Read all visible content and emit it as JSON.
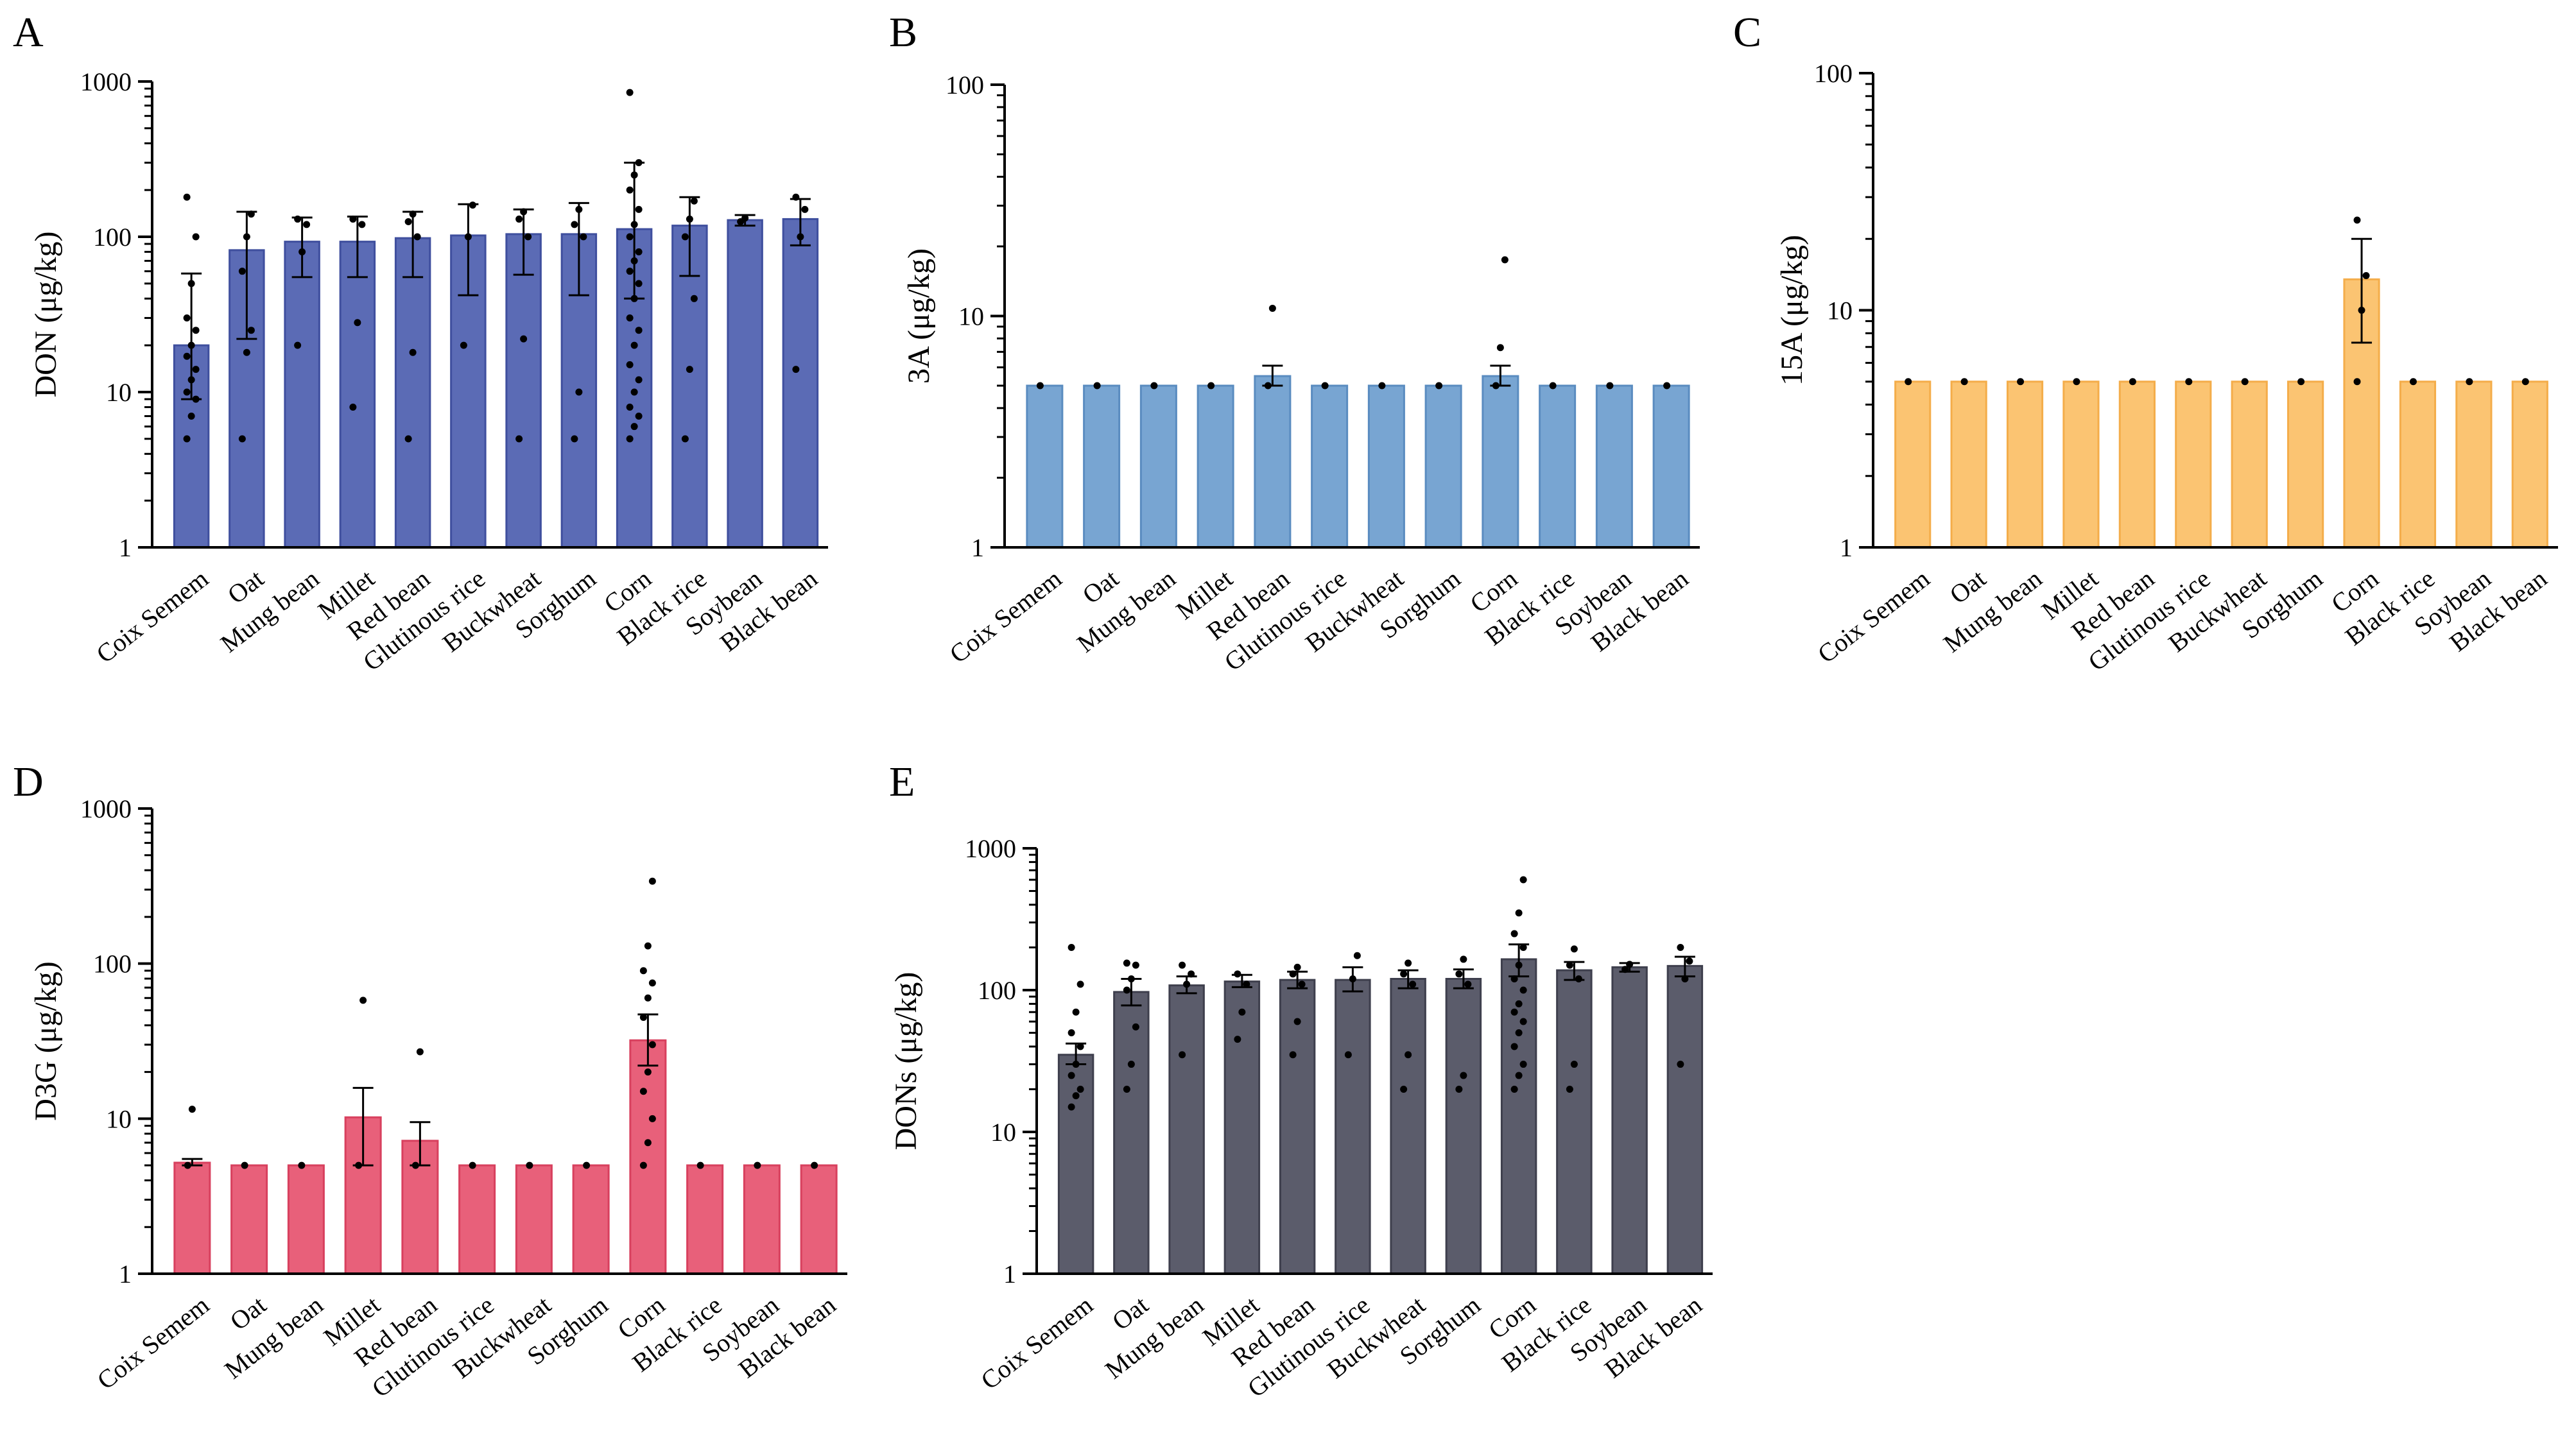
{
  "figure": {
    "type": "multi-panel log-scale bar chart with error bars and individual points"
  },
  "chart_data": [
    {
      "panel": "A",
      "type": "bar",
      "scale": "log",
      "ylabel": "DON (μg/kg)",
      "ylim": [
        1,
        1000
      ],
      "yticks": [
        "1",
        "10",
        "100",
        "1000"
      ],
      "color": "#5b6bb5",
      "edge": "#3f4f9e",
      "categories": [
        "Coix Semem",
        "Oat",
        "Mung bean",
        "Millet",
        "Red bean",
        "Glutinous rice",
        "Buckwheat",
        "Sorghum",
        "Corn",
        "Black rice",
        "Soybean",
        "Black bean"
      ],
      "values": [
        20,
        82,
        93,
        93,
        98,
        102,
        104,
        104,
        112,
        118,
        128,
        130
      ],
      "err_low": [
        9,
        22,
        55,
        55,
        55,
        42,
        57,
        42,
        40,
        56,
        118,
        88
      ],
      "err_high": [
        58,
        145,
        133,
        135,
        145,
        162,
        150,
        165,
        300,
        180,
        138,
        175
      ],
      "points": [
        [
          5,
          7,
          9,
          10,
          12,
          14,
          17,
          20,
          25,
          30,
          50,
          100,
          180
        ],
        [
          5,
          18,
          25,
          60,
          100,
          140
        ],
        [
          20,
          80,
          120,
          130
        ],
        [
          8,
          28,
          120,
          130
        ],
        [
          5,
          18,
          100,
          125,
          140
        ],
        [
          20,
          100,
          160
        ],
        [
          5,
          22,
          100,
          130,
          145
        ],
        [
          5,
          10,
          100,
          120,
          150
        ],
        [
          5,
          6,
          7,
          8,
          10,
          12,
          15,
          20,
          25,
          30,
          40,
          50,
          60,
          70,
          80,
          100,
          120,
          150,
          200,
          250,
          300,
          850
        ],
        [
          5,
          14,
          40,
          100,
          130,
          170
        ],
        [
          125,
          132
        ],
        [
          14,
          100,
          150,
          180
        ]
      ]
    },
    {
      "panel": "B",
      "type": "bar",
      "scale": "log",
      "ylabel": "3A (μg/kg)",
      "ylim": [
        1,
        100
      ],
      "yticks": [
        "1",
        "10",
        "100"
      ],
      "color": "#78a5d2",
      "edge": "#5a8cc0",
      "categories": [
        "Coix Semem",
        "Oat",
        "Mung bean",
        "Millet",
        "Red bean",
        "Glutinous rice",
        "Buckwheat",
        "Sorghum",
        "Corn",
        "Black rice",
        "Soybean",
        "Black bean"
      ],
      "values": [
        5,
        5,
        5,
        5,
        5.5,
        5,
        5,
        5,
        5.5,
        5,
        5,
        5
      ],
      "err_low": [
        5,
        5,
        5,
        5,
        5,
        5,
        5,
        5,
        5,
        5,
        5,
        5
      ],
      "err_high": [
        5,
        5,
        5,
        5,
        6.1,
        5,
        5,
        5,
        6.1,
        5,
        5,
        5
      ],
      "points": [
        [
          5
        ],
        [
          5
        ],
        [
          5
        ],
        [
          5
        ],
        [
          5,
          10.8
        ],
        [
          5
        ],
        [
          5
        ],
        [
          5
        ],
        [
          5,
          7.3,
          17.5
        ],
        [
          5
        ],
        [
          5
        ],
        [
          5
        ]
      ]
    },
    {
      "panel": "C",
      "type": "bar",
      "scale": "log",
      "ylabel": "15A (μg/kg)",
      "ylim": [
        1,
        100
      ],
      "yticks": [
        "1",
        "10",
        "100"
      ],
      "color": "#fbc472",
      "edge": "#f4ad4a",
      "categories": [
        "Coix Semem",
        "Oat",
        "Mung bean",
        "Millet",
        "Red bean",
        "Glutinous rice",
        "Buckwheat",
        "Sorghum",
        "Corn",
        "Black rice",
        "Soybean",
        "Black bean"
      ],
      "values": [
        5,
        5,
        5,
        5,
        5,
        5,
        5,
        5,
        13.5,
        5,
        5,
        5
      ],
      "err_low": [
        5,
        5,
        5,
        5,
        5,
        5,
        5,
        5,
        7.3,
        5,
        5,
        5
      ],
      "err_high": [
        5,
        5,
        5,
        5,
        5,
        5,
        5,
        5,
        20,
        5,
        5,
        5
      ],
      "points": [
        [
          5
        ],
        [
          5
        ],
        [
          5
        ],
        [
          5
        ],
        [
          5
        ],
        [
          5
        ],
        [
          5
        ],
        [
          5
        ],
        [
          5,
          10,
          14,
          24
        ],
        [
          5
        ],
        [
          5
        ],
        [
          5
        ]
      ]
    },
    {
      "panel": "D",
      "type": "bar",
      "scale": "log",
      "ylabel": "D3G (μg/kg)",
      "ylim": [
        1,
        1000
      ],
      "yticks": [
        "1",
        "10",
        "100",
        "1000"
      ],
      "color": "#e8607a",
      "edge": "#d8405e",
      "categories": [
        "Coix Semem",
        "Oat",
        "Mung bean",
        "Millet",
        "Red bean",
        "Glutinous rice",
        "Buckwheat",
        "Sorghum",
        "Corn",
        "Black rice",
        "Soybean",
        "Black bean"
      ],
      "values": [
        5.2,
        5,
        5,
        10.2,
        7.2,
        5,
        5,
        5,
        32,
        5,
        5,
        5
      ],
      "err_low": [
        5,
        5,
        5,
        5,
        5,
        5,
        5,
        5,
        22,
        5,
        5,
        5
      ],
      "err_high": [
        5.5,
        5,
        5,
        15.8,
        9.5,
        5,
        5,
        5,
        47,
        5,
        5,
        5
      ],
      "points": [
        [
          5,
          11.5
        ],
        [
          5
        ],
        [
          5
        ],
        [
          5,
          58
        ],
        [
          5,
          27
        ],
        [
          5
        ],
        [
          5
        ],
        [
          5
        ],
        [
          5,
          7,
          10,
          15,
          20,
          30,
          45,
          60,
          75,
          90,
          130,
          340
        ],
        [
          5
        ],
        [
          5
        ],
        [
          5
        ]
      ]
    },
    {
      "panel": "E",
      "type": "bar",
      "scale": "log",
      "ylabel": "DONs (μg/kg)",
      "ylim": [
        1,
        1000
      ],
      "yticks": [
        "1",
        "10",
        "100",
        "1000"
      ],
      "color": "#5b5c6b",
      "edge": "#3e3f4d",
      "categories": [
        "Coix Semem",
        "Oat",
        "Mung bean",
        "Millet",
        "Red bean",
        "Glutinous rice",
        "Buckwheat",
        "Sorghum",
        "Corn",
        "Black rice",
        "Soybean",
        "Black bean"
      ],
      "values": [
        35,
        97,
        108,
        115,
        118,
        118,
        120,
        120,
        165,
        138,
        145,
        148
      ],
      "err_low": [
        30,
        78,
        95,
        105,
        103,
        98,
        103,
        103,
        125,
        118,
        135,
        125
      ],
      "err_high": [
        42,
        120,
        125,
        128,
        135,
        145,
        138,
        140,
        210,
        158,
        155,
        172
      ],
      "points": [
        [
          15,
          18,
          20,
          25,
          30,
          40,
          50,
          70,
          110,
          200
        ],
        [
          20,
          30,
          55,
          100,
          120,
          150,
          155
        ],
        [
          35,
          110,
          130,
          150
        ],
        [
          45,
          70,
          110,
          130
        ],
        [
          35,
          60,
          110,
          130,
          145
        ],
        [
          35,
          120,
          175
        ],
        [
          20,
          35,
          110,
          130,
          155
        ],
        [
          20,
          25,
          110,
          130,
          165
        ],
        [
          20,
          25,
          30,
          40,
          50,
          60,
          70,
          80,
          100,
          120,
          150,
          200,
          250,
          350,
          600
        ],
        [
          20,
          30,
          120,
          150,
          195
        ],
        [
          140,
          152
        ],
        [
          30,
          120,
          160,
          200
        ]
      ]
    }
  ]
}
